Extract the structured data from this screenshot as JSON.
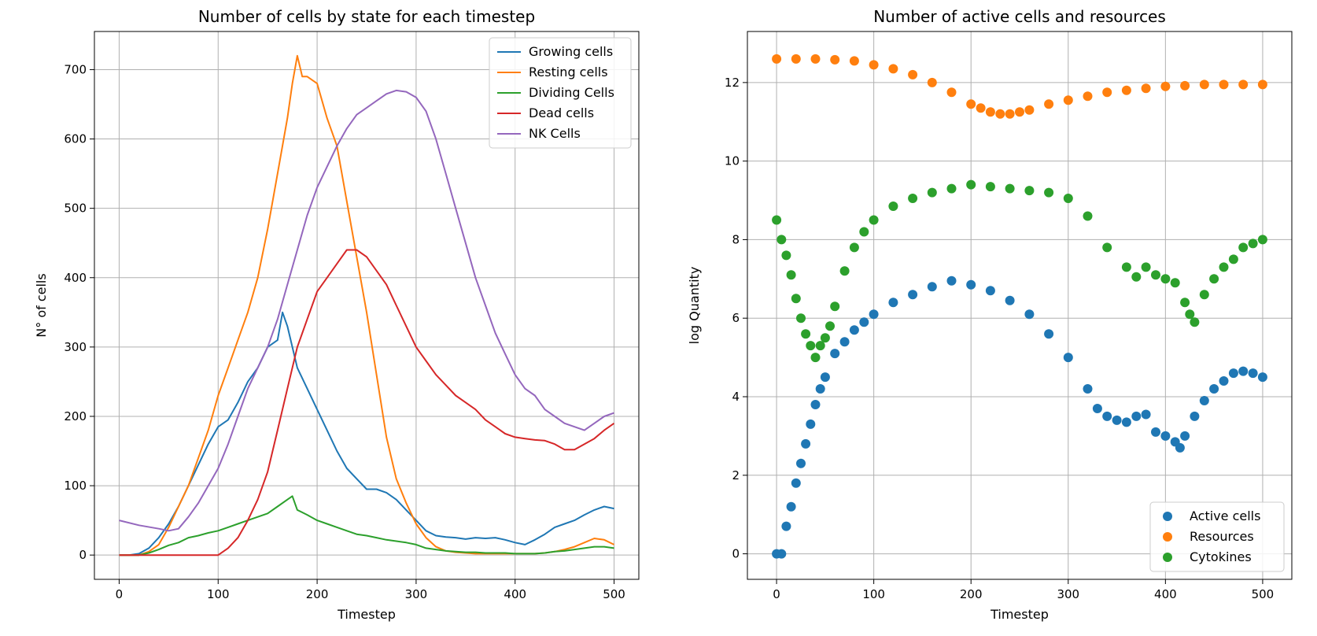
{
  "chart_data": [
    {
      "type": "line",
      "title": "Number of cells by state for each timestep",
      "xlabel": "Timestep",
      "ylabel": "N° of cells",
      "xlim": [
        -25,
        525
      ],
      "ylim": [
        -35,
        755
      ],
      "xticks": [
        0,
        100,
        200,
        300,
        400,
        500
      ],
      "yticks": [
        0,
        100,
        200,
        300,
        400,
        500,
        600,
        700
      ],
      "grid": true,
      "legend_position": "top-right",
      "series": [
        {
          "name": "Growing cells",
          "color": "#1f77b4",
          "x": [
            0,
            10,
            20,
            30,
            40,
            50,
            60,
            70,
            80,
            90,
            100,
            110,
            120,
            130,
            140,
            150,
            160,
            165,
            170,
            175,
            180,
            190,
            200,
            210,
            220,
            230,
            240,
            250,
            260,
            270,
            280,
            290,
            300,
            310,
            320,
            330,
            340,
            350,
            360,
            370,
            380,
            390,
            400,
            410,
            420,
            430,
            440,
            450,
            460,
            470,
            480,
            490,
            500
          ],
          "y": [
            0,
            0,
            2,
            10,
            25,
            45,
            70,
            100,
            130,
            160,
            185,
            195,
            220,
            250,
            270,
            300,
            310,
            350,
            330,
            300,
            270,
            240,
            210,
            180,
            150,
            125,
            110,
            95,
            95,
            90,
            80,
            65,
            50,
            35,
            28,
            26,
            25,
            23,
            25,
            24,
            25,
            22,
            18,
            15,
            22,
            30,
            40,
            45,
            50,
            58,
            65,
            70,
            67
          ]
        },
        {
          "name": "Resting cells",
          "color": "#ff7f0e",
          "x": [
            0,
            20,
            30,
            40,
            50,
            60,
            70,
            80,
            90,
            100,
            110,
            120,
            130,
            140,
            150,
            160,
            170,
            175,
            180,
            185,
            190,
            200,
            210,
            220,
            230,
            240,
            250,
            260,
            270,
            280,
            290,
            300,
            310,
            320,
            330,
            340,
            350,
            360,
            370,
            380,
            390,
            400,
            410,
            420,
            430,
            440,
            450,
            460,
            470,
            480,
            490,
            500
          ],
          "y": [
            0,
            0,
            5,
            15,
            40,
            70,
            100,
            140,
            180,
            230,
            270,
            310,
            350,
            400,
            470,
            550,
            630,
            680,
            720,
            690,
            690,
            680,
            630,
            590,
            510,
            430,
            350,
            260,
            170,
            110,
            75,
            45,
            25,
            12,
            6,
            4,
            3,
            2,
            2,
            2,
            2,
            2,
            2,
            2,
            3,
            5,
            8,
            12,
            18,
            24,
            22,
            15
          ]
        },
        {
          "name": "Dividing Cells",
          "color": "#2ca02c",
          "x": [
            0,
            10,
            20,
            30,
            40,
            50,
            60,
            70,
            80,
            90,
            100,
            110,
            120,
            130,
            140,
            150,
            160,
            170,
            175,
            180,
            190,
            200,
            210,
            220,
            230,
            240,
            250,
            260,
            270,
            280,
            290,
            300,
            310,
            320,
            330,
            340,
            350,
            360,
            370,
            380,
            390,
            400,
            410,
            420,
            430,
            440,
            450,
            460,
            470,
            480,
            490,
            500
          ],
          "y": [
            0,
            0,
            0,
            3,
            8,
            14,
            18,
            25,
            28,
            32,
            35,
            40,
            45,
            50,
            55,
            60,
            70,
            80,
            85,
            65,
            58,
            50,
            45,
            40,
            35,
            30,
            28,
            25,
            22,
            20,
            18,
            15,
            10,
            8,
            6,
            5,
            4,
            4,
            3,
            3,
            3,
            2,
            2,
            2,
            3,
            5,
            6,
            8,
            10,
            12,
            12,
            10
          ]
        },
        {
          "name": "Dead cells",
          "color": "#d62728",
          "x": [
            0,
            100,
            110,
            120,
            130,
            140,
            150,
            160,
            170,
            180,
            190,
            200,
            210,
            220,
            230,
            240,
            250,
            260,
            270,
            280,
            290,
            300,
            310,
            320,
            330,
            340,
            350,
            360,
            370,
            380,
            390,
            400,
            410,
            420,
            430,
            440,
            450,
            460,
            470,
            480,
            490,
            500
          ],
          "y": [
            0,
            0,
            10,
            25,
            50,
            80,
            120,
            180,
            240,
            300,
            340,
            380,
            400,
            420,
            440,
            440,
            430,
            410,
            390,
            360,
            330,
            300,
            280,
            260,
            245,
            230,
            220,
            210,
            195,
            185,
            175,
            170,
            168,
            166,
            165,
            160,
            152,
            152,
            160,
            168,
            180,
            190
          ]
        },
        {
          "name": "NK Cells",
          "color": "#9467bd",
          "x": [
            0,
            20,
            40,
            50,
            60,
            70,
            80,
            90,
            100,
            110,
            120,
            130,
            140,
            150,
            160,
            170,
            180,
            190,
            200,
            210,
            220,
            230,
            240,
            250,
            260,
            270,
            280,
            290,
            300,
            310,
            320,
            330,
            340,
            350,
            360,
            370,
            380,
            390,
            400,
            410,
            420,
            430,
            440,
            450,
            460,
            470,
            480,
            490,
            500
          ],
          "y": [
            50,
            43,
            38,
            35,
            38,
            55,
            75,
            100,
            125,
            160,
            200,
            240,
            270,
            300,
            340,
            390,
            440,
            490,
            530,
            560,
            590,
            615,
            635,
            645,
            655,
            665,
            670,
            668,
            660,
            640,
            600,
            550,
            500,
            450,
            400,
            360,
            320,
            290,
            260,
            240,
            230,
            210,
            200,
            190,
            185,
            180,
            190,
            200,
            205
          ]
        }
      ]
    },
    {
      "type": "scatter",
      "title": "Number of active cells and resources",
      "xlabel": "Timestep",
      "ylabel": "log Quantity",
      "xlim": [
        -30,
        530
      ],
      "ylim": [
        -0.65,
        13.3
      ],
      "xticks": [
        0,
        100,
        200,
        300,
        400,
        500
      ],
      "yticks": [
        0,
        2,
        4,
        6,
        8,
        10,
        12
      ],
      "grid": true,
      "legend_position": "bottom-right",
      "series": [
        {
          "name": "Active cells",
          "color": "#1f77b4",
          "x": [
            0,
            5,
            10,
            15,
            20,
            25,
            30,
            35,
            40,
            45,
            50,
            60,
            70,
            80,
            90,
            100,
            120,
            140,
            160,
            180,
            200,
            220,
            240,
            260,
            280,
            300,
            320,
            330,
            340,
            350,
            360,
            370,
            380,
            390,
            400,
            410,
            415,
            420,
            430,
            440,
            450,
            460,
            470,
            480,
            490,
            500
          ],
          "y": [
            0,
            0,
            0.7,
            1.2,
            1.8,
            2.3,
            2.8,
            3.3,
            3.8,
            4.2,
            4.5,
            5.1,
            5.4,
            5.7,
            5.9,
            6.1,
            6.4,
            6.6,
            6.8,
            6.95,
            6.85,
            6.7,
            6.45,
            6.1,
            5.6,
            5.0,
            4.2,
            3.7,
            3.5,
            3.4,
            3.35,
            3.5,
            3.55,
            3.1,
            3.0,
            2.85,
            2.7,
            3.0,
            3.5,
            3.9,
            4.2,
            4.4,
            4.6,
            4.65,
            4.6,
            4.5
          ]
        },
        {
          "name": "Resources",
          "color": "#ff7f0e",
          "x": [
            0,
            20,
            40,
            60,
            80,
            100,
            120,
            140,
            160,
            180,
            200,
            210,
            220,
            230,
            240,
            250,
            260,
            280,
            300,
            320,
            340,
            360,
            380,
            400,
            420,
            440,
            460,
            480,
            500
          ],
          "y": [
            12.6,
            12.6,
            12.6,
            12.58,
            12.55,
            12.45,
            12.35,
            12.2,
            12.0,
            11.75,
            11.45,
            11.35,
            11.25,
            11.2,
            11.2,
            11.25,
            11.3,
            11.45,
            11.55,
            11.65,
            11.75,
            11.8,
            11.85,
            11.9,
            11.92,
            11.95,
            11.95,
            11.95,
            11.95
          ]
        },
        {
          "name": "Cytokines",
          "color": "#2ca02c",
          "x": [
            0,
            5,
            10,
            15,
            20,
            25,
            30,
            35,
            40,
            45,
            50,
            55,
            60,
            70,
            80,
            90,
            100,
            120,
            140,
            160,
            180,
            200,
            220,
            240,
            260,
            280,
            300,
            320,
            340,
            360,
            370,
            380,
            390,
            400,
            410,
            420,
            425,
            430,
            440,
            450,
            460,
            470,
            480,
            490,
            500
          ],
          "y": [
            8.5,
            8.0,
            7.6,
            7.1,
            6.5,
            6.0,
            5.6,
            5.3,
            5.0,
            5.3,
            5.5,
            5.8,
            6.3,
            7.2,
            7.8,
            8.2,
            8.5,
            8.85,
            9.05,
            9.2,
            9.3,
            9.4,
            9.35,
            9.3,
            9.25,
            9.2,
            9.05,
            8.6,
            7.8,
            7.3,
            7.05,
            7.3,
            7.1,
            7.0,
            6.9,
            6.4,
            6.1,
            5.9,
            6.6,
            7.0,
            7.3,
            7.5,
            7.8,
            7.9,
            8.0
          ]
        }
      ]
    }
  ]
}
